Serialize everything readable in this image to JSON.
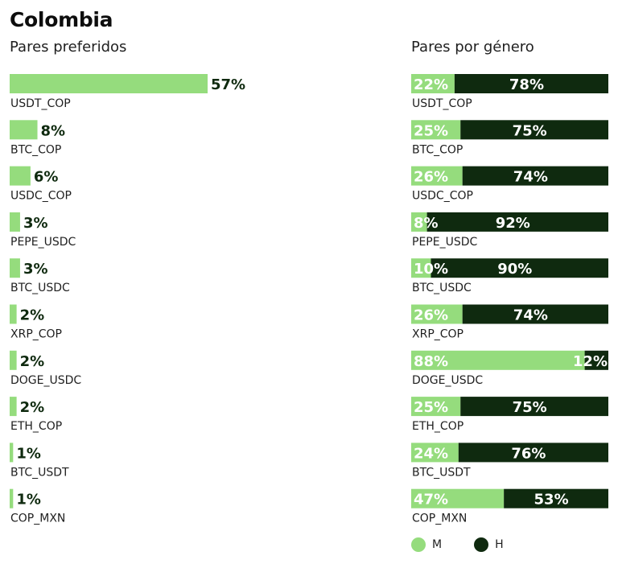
{
  "title": "Colombia",
  "colors": {
    "m": "#95dc7d",
    "h": "#0f2a0f",
    "label_dark": "#0f2a0f",
    "label_light": "#ffffff"
  },
  "chart_data": [
    {
      "type": "bar",
      "orientation": "horizontal",
      "title": "Pares preferidos",
      "unit": "%",
      "categories": [
        "USDT_COP",
        "BTC_COP",
        "USDC_COP",
        "PEPE_USDC",
        "BTC_USDC",
        "XRP_COP",
        "DOGE_USDC",
        "ETH_COP",
        "BTC_USDT",
        "COP_MXN"
      ],
      "values": [
        57,
        8,
        6,
        3,
        3,
        2,
        2,
        2,
        1,
        1
      ],
      "labels": [
        "57%",
        "8%",
        "6%",
        "3%",
        "3%",
        "2%",
        "2%",
        "2%",
        "1%",
        "1%"
      ]
    },
    {
      "type": "bar",
      "orientation": "horizontal",
      "stacked": true,
      "title": "Pares por género",
      "unit": "%",
      "categories": [
        "USDT_COP",
        "BTC_COP",
        "USDC_COP",
        "PEPE_USDC",
        "BTC_USDC",
        "XRP_COP",
        "DOGE_USDC",
        "ETH_COP",
        "BTC_USDT",
        "COP_MXN"
      ],
      "series": [
        {
          "name": "M",
          "values": [
            22,
            25,
            26,
            8,
            10,
            26,
            88,
            25,
            24,
            47
          ],
          "labels": [
            "22%",
            "25%",
            "26%",
            "8%",
            "10%",
            "26%",
            "88%",
            "25%",
            "24%",
            "47%"
          ]
        },
        {
          "name": "H",
          "values": [
            78,
            75,
            74,
            92,
            90,
            74,
            12,
            75,
            76,
            53
          ],
          "labels": [
            "78%",
            "75%",
            "74%",
            "92%",
            "90%",
            "74%",
            "12%",
            "75%",
            "76%",
            "53%"
          ]
        }
      ],
      "legend": "bottom"
    }
  ]
}
